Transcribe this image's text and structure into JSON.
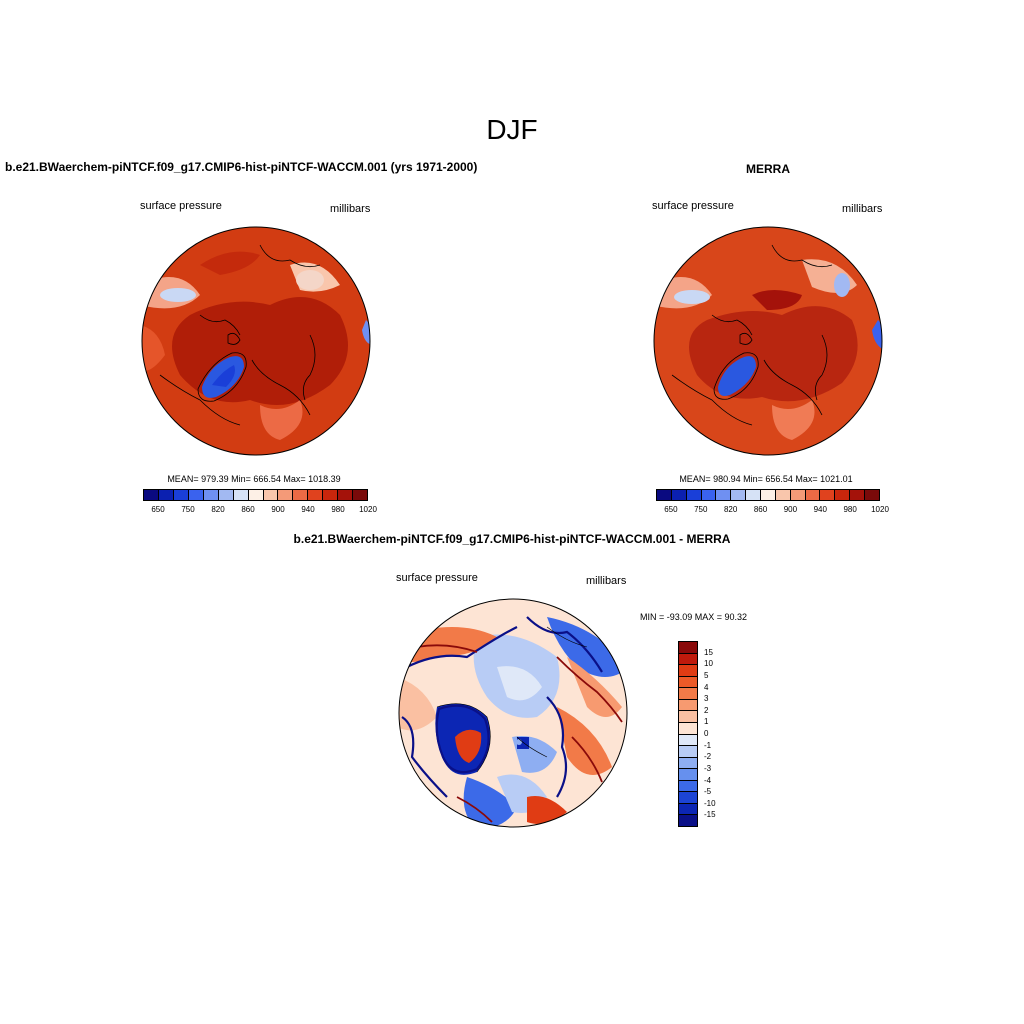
{
  "figure": {
    "title": "DJF"
  },
  "panels": {
    "model": {
      "title": "b.e21.BWaerchem-piNTCF.f09_g17.CMIP6-hist-piNTCF-WACCM.001 (yrs 1971-2000)",
      "variable": "surface pressure",
      "units": "millibars",
      "stats": "MEAN= 979.39  Min= 666.54  Max= 1018.39"
    },
    "obs": {
      "title": "MERRA",
      "variable": "surface pressure",
      "units": "millibars",
      "stats": "MEAN= 980.94  Min= 656.54  Max= 1021.01"
    },
    "diff": {
      "title": "b.e21.BWaerchem-piNTCF.f09_g17.CMIP6-hist-piNTCF-WACCM.001 - MERRA",
      "variable": "surface pressure",
      "units": "millibars",
      "stats": "MIN = -93.09 MAX =  90.32"
    }
  },
  "colorbars": {
    "absolute": {
      "colors": [
        "#0a0a80",
        "#0b20b0",
        "#1a3fd8",
        "#3a62ee",
        "#6f90f2",
        "#a2b9f2",
        "#d6e2f6",
        "#fdf0e6",
        "#f9c6ac",
        "#f49a78",
        "#ec6a45",
        "#e0421e",
        "#c9260c",
        "#a4120a",
        "#7a0a0a"
      ],
      "tick_labels": [
        "650",
        "750",
        "820",
        "860",
        "900",
        "940",
        "980",
        "1020"
      ]
    },
    "difference": {
      "colors": [
        "#8a0a0a",
        "#bf1a0c",
        "#e03c14",
        "#ec5a28",
        "#f27a48",
        "#f79a70",
        "#fac0a2",
        "#fde4d4",
        "#dfe8f8",
        "#b8ccf5",
        "#8eaef2",
        "#6690ee",
        "#3c6ae8",
        "#1c44d4",
        "#0c26b4",
        "#0a1088"
      ],
      "tick_labels": [
        "15",
        "10",
        "5",
        "4",
        "3",
        "2",
        "1",
        "0",
        "-1",
        "-2",
        "-3",
        "-4",
        "-5",
        "-10",
        "-15"
      ]
    }
  }
}
